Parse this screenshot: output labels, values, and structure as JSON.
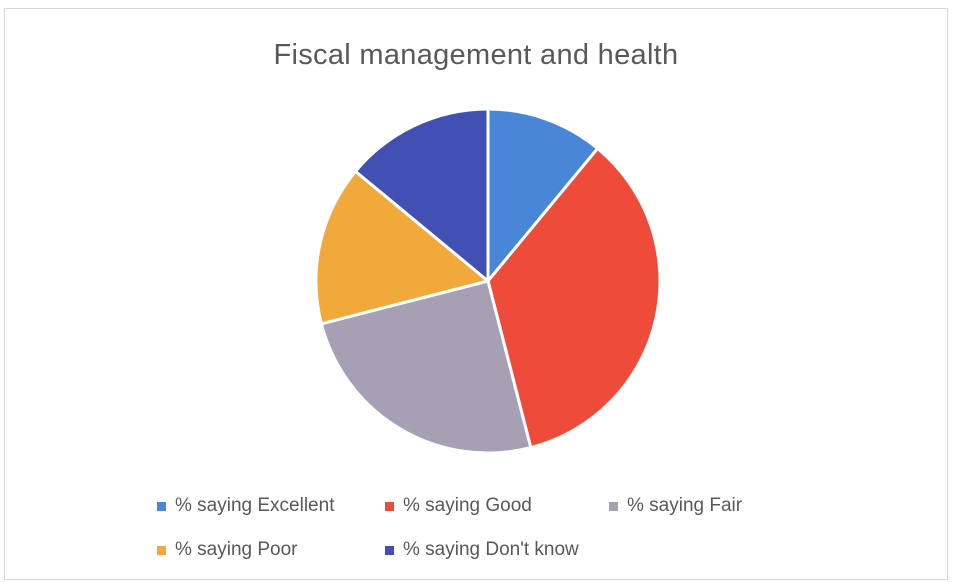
{
  "chart_data": {
    "type": "pie",
    "title": "Fiscal management and health",
    "categories": [
      "% saying Excellent",
      "% saying Good",
      "% saying Fair",
      "% saying Poor",
      "% saying Don't know"
    ],
    "values": [
      11,
      35,
      25,
      15,
      14
    ],
    "colors": [
      "#4a86d8",
      "#ef4b3a",
      "#a79fb3",
      "#f2a93b",
      "#4250b4"
    ],
    "legend_position": "bottom",
    "slice_border_color": "#ffffff",
    "start_angle": "12 o'clock",
    "direction": "clockwise"
  }
}
